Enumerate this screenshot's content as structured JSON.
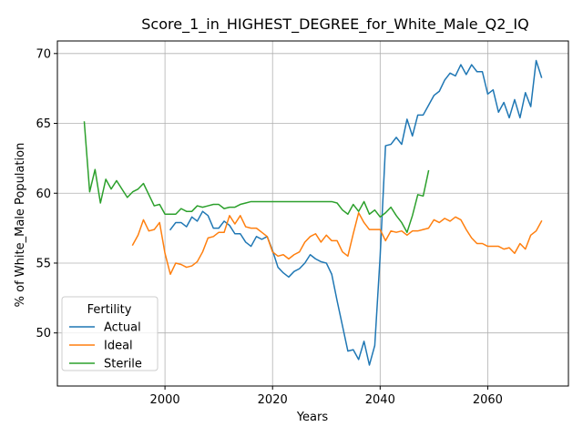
{
  "chart_data": {
    "type": "line",
    "title": "Score_1_in_HIGHEST_DEGREE_for_White_Male_Q2_IQ",
    "xlabel": "Years",
    "ylabel": "% of White_Male Population",
    "xlim": [
      1980,
      2075
    ],
    "ylim": [
      46.2,
      70.9
    ],
    "xticks": [
      2000,
      2020,
      2040,
      2060
    ],
    "yticks": [
      50,
      55,
      60,
      65,
      70
    ],
    "grid": true,
    "legend": {
      "title": "Fertility",
      "position": "lower-left"
    },
    "series": [
      {
        "name": "Actual",
        "color": "#1f77b4",
        "x": [
          2001,
          2002,
          2003,
          2004,
          2005,
          2006,
          2007,
          2008,
          2009,
          2010,
          2011,
          2012,
          2013,
          2014,
          2015,
          2016,
          2017,
          2018,
          2019,
          2020,
          2021,
          2022,
          2023,
          2024,
          2025,
          2026,
          2027,
          2028,
          2029,
          2030,
          2031,
          2032,
          2033,
          2034,
          2035,
          2036,
          2037,
          2038,
          2039,
          2040,
          2041,
          2042,
          2043,
          2044,
          2045,
          2046,
          2047,
          2048,
          2049,
          2050,
          2051,
          2052,
          2053,
          2054,
          2055,
          2056,
          2057,
          2058,
          2059,
          2060,
          2061,
          2062,
          2063,
          2064,
          2065,
          2066,
          2067,
          2068,
          2069,
          2070
        ],
        "values": [
          57.4,
          57.9,
          57.9,
          57.6,
          58.3,
          58.0,
          58.7,
          58.4,
          57.5,
          57.5,
          58.0,
          57.7,
          57.1,
          57.1,
          56.5,
          56.2,
          56.9,
          56.7,
          56.9,
          55.9,
          54.7,
          54.3,
          54.0,
          54.4,
          54.6,
          55.0,
          55.6,
          55.3,
          55.1,
          55.0,
          54.2,
          52.3,
          50.5,
          48.7,
          48.8,
          48.1,
          49.4,
          47.7,
          49.1,
          55.5,
          63.4,
          63.5,
          64.0,
          63.5,
          65.3,
          64.1,
          65.6,
          65.6,
          66.3,
          67.0,
          67.3,
          68.1,
          68.6,
          68.4,
          69.2,
          68.5,
          69.2,
          68.7,
          68.7,
          67.1,
          67.4,
          65.8,
          66.5,
          65.4,
          66.7,
          65.4,
          67.2,
          66.2,
          69.5,
          68.3
        ]
      },
      {
        "name": "Ideal",
        "color": "#ff7f0e",
        "x": [
          1994,
          1995,
          1996,
          1997,
          1998,
          1999,
          2000,
          2001,
          2002,
          2003,
          2004,
          2005,
          2006,
          2007,
          2008,
          2009,
          2010,
          2011,
          2012,
          2013,
          2014,
          2015,
          2016,
          2017,
          2018,
          2019,
          2020,
          2021,
          2022,
          2023,
          2024,
          2025,
          2026,
          2027,
          2028,
          2029,
          2030,
          2031,
          2032,
          2033,
          2034,
          2035,
          2036,
          2037,
          2038,
          2039,
          2040,
          2041,
          2042,
          2043,
          2044,
          2045,
          2046,
          2047,
          2048,
          2049,
          2050,
          2051,
          2052,
          2053,
          2054,
          2055,
          2056,
          2057,
          2058,
          2059,
          2060,
          2061,
          2062,
          2063,
          2064,
          2065,
          2066,
          2067,
          2068,
          2069,
          2070
        ],
        "values": [
          56.3,
          57.0,
          58.1,
          57.3,
          57.4,
          57.9,
          55.7,
          54.2,
          55.0,
          54.9,
          54.7,
          54.8,
          55.1,
          55.8,
          56.8,
          56.9,
          57.2,
          57.2,
          58.4,
          57.8,
          58.4,
          57.6,
          57.5,
          57.5,
          57.2,
          56.9,
          55.8,
          55.5,
          55.6,
          55.3,
          55.6,
          55.8,
          56.5,
          56.9,
          57.1,
          56.5,
          57.0,
          56.6,
          56.6,
          55.8,
          55.5,
          57.1,
          58.6,
          57.9,
          57.4,
          57.4,
          57.4,
          56.6,
          57.3,
          57.2,
          57.3,
          57.0,
          57.3,
          57.3,
          57.4,
          57.5,
          58.1,
          57.9,
          58.2,
          58.0,
          58.3,
          58.1,
          57.4,
          56.8,
          56.4,
          56.4,
          56.2,
          56.2,
          56.2,
          56.0,
          56.1,
          55.7,
          56.4,
          56.0,
          57.0,
          57.3,
          58.0
        ]
      },
      {
        "name": "Sterile",
        "color": "#2ca02c",
        "x": [
          1985,
          1986,
          1987,
          1988,
          1989,
          1990,
          1991,
          1992,
          1993,
          1994,
          1995,
          1996,
          1997,
          1998,
          1999,
          2000,
          2001,
          2002,
          2003,
          2004,
          2005,
          2006,
          2007,
          2008,
          2009,
          2010,
          2011,
          2012,
          2013,
          2014,
          2015,
          2016,
          2017,
          2018,
          2019,
          2020,
          2021,
          2022,
          2023,
          2024,
          2025,
          2026,
          2027,
          2028,
          2029,
          2030,
          2031,
          2032,
          2033,
          2034,
          2035,
          2036,
          2037,
          2038,
          2039,
          2040,
          2041,
          2042,
          2043,
          2044,
          2045,
          2046,
          2047,
          2048,
          2049
        ],
        "values": [
          65.1,
          60.1,
          61.7,
          59.3,
          61.0,
          60.3,
          60.9,
          60.3,
          59.7,
          60.1,
          60.3,
          60.7,
          59.9,
          59.1,
          59.2,
          58.5,
          58.5,
          58.5,
          58.9,
          58.7,
          58.7,
          59.1,
          59.0,
          59.1,
          59.2,
          59.2,
          58.9,
          59.0,
          59.0,
          59.2,
          59.3,
          59.4,
          59.4,
          59.4,
          59.4,
          59.4,
          59.4,
          59.4,
          59.4,
          59.4,
          59.4,
          59.4,
          59.4,
          59.4,
          59.4,
          59.4,
          59.4,
          59.3,
          58.8,
          58.5,
          59.2,
          58.7,
          59.4,
          58.5,
          58.8,
          58.3,
          58.6,
          59.0,
          58.4,
          57.9,
          57.2,
          58.4,
          59.9,
          59.8,
          61.6
        ]
      }
    ]
  }
}
